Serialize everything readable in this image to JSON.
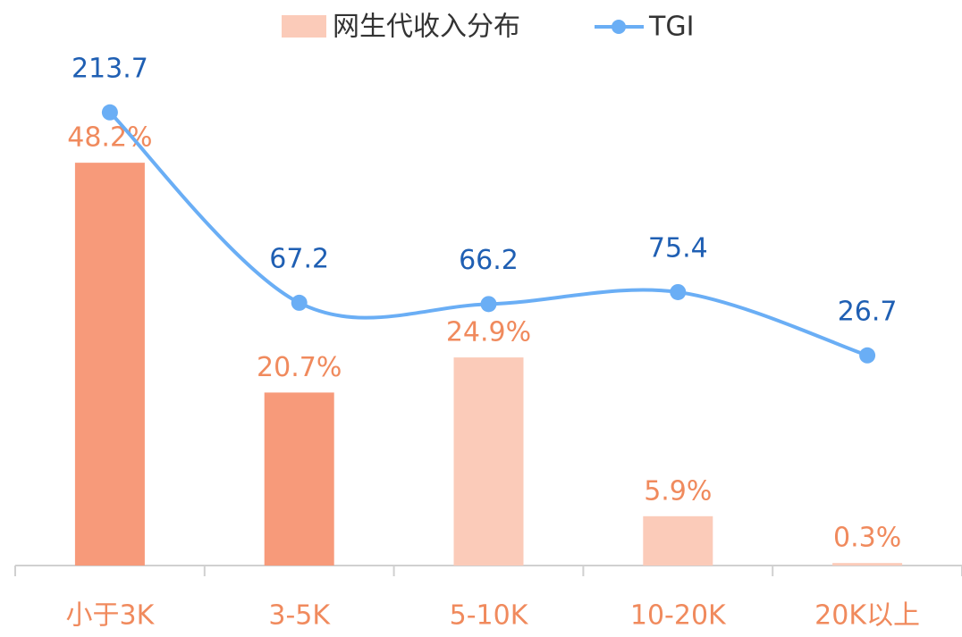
{
  "chart_data": {
    "type": "bar",
    "categories": [
      "小于3K",
      "3-5K",
      "5-10K",
      "10-20K",
      "20K以上"
    ],
    "series": [
      {
        "name": "网生代收入分布",
        "type": "bar",
        "color": "#fbcbb9",
        "colors": [
          "#f79a7a",
          "#f79a7a",
          "#fbcbb9",
          "#fbcbb9",
          "#fbcbb9"
        ],
        "values": [
          48.2,
          20.7,
          24.9,
          5.9,
          0.3
        ],
        "value_labels": [
          "48.2%",
          "20.7%",
          "24.9%",
          "5.9%",
          "0.3%"
        ]
      },
      {
        "name": "TGI",
        "type": "line",
        "axis": "y2",
        "color": "#6aaef5",
        "values": [
          213.7,
          67.2,
          66.2,
          75.4,
          26.7
        ]
      }
    ],
    "ylim": [
      0,
      65
    ],
    "y2lim": [
      -135,
      283
    ]
  }
}
